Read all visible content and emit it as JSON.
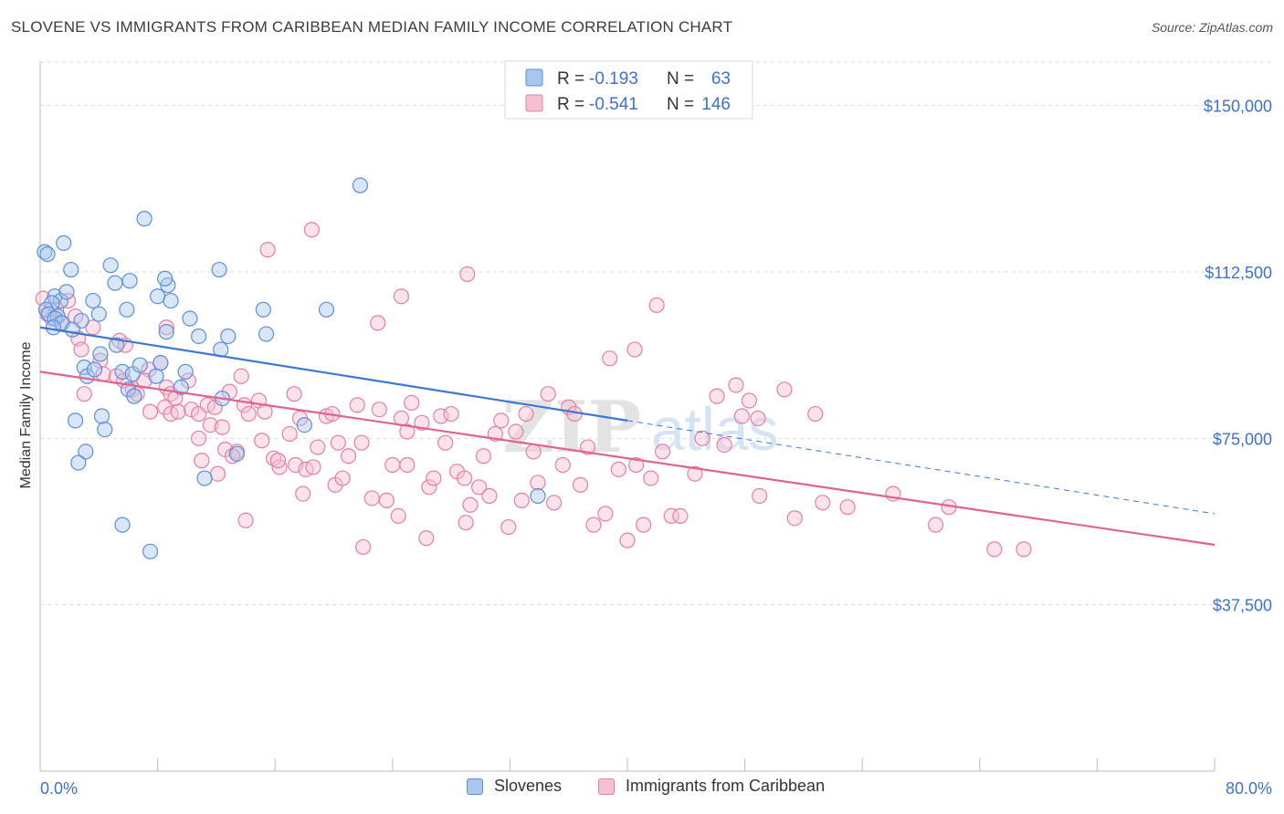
{
  "title": "SLOVENE VS IMMIGRANTS FROM CARIBBEAN MEDIAN FAMILY INCOME CORRELATION CHART",
  "source": "Source: ZipAtlas.com",
  "watermark": {
    "zip": "ZIP",
    "atlas": "atlas"
  },
  "legend_top": [
    {
      "r_label": "R =",
      "r_value": "-0.193",
      "n_label": "N =",
      "n_value": "63"
    },
    {
      "r_label": "R =",
      "r_value": "-0.541",
      "n_label": "N =",
      "n_value": "146"
    }
  ],
  "legend_bottom": [
    "Slovenes",
    "Immigrants from Caribbean"
  ],
  "colors": {
    "slovenes_fill": "#a9c7ee",
    "slovenes_stroke": "#5b8fd6",
    "slovenes_line": "#3a78d4",
    "caribbean_fill": "#f6bfd2",
    "caribbean_stroke": "#e57fa2",
    "caribbean_line": "#e0638f",
    "axis_label": "#3d72c9",
    "grid": "#dcdcdc"
  },
  "chart_data": {
    "type": "scatter",
    "title": "SLOVENE VS IMMIGRANTS FROM CARIBBEAN MEDIAN FAMILY INCOME CORRELATION CHART",
    "xlabel": "",
    "ylabel": "Median Family Income",
    "xlim": [
      0,
      80
    ],
    "ylim": [
      0,
      160000
    ],
    "x_tick_labels": [
      "0.0%",
      "80.0%"
    ],
    "y_ticks": [
      37500,
      75000,
      112500,
      150000
    ],
    "y_tick_labels": [
      "$37,500",
      "$75,000",
      "$112,500",
      "$150,000"
    ],
    "grid": true,
    "legend_placement": "top-center",
    "series": [
      {
        "name": "Slovenes",
        "R": -0.193,
        "N": 63,
        "trend": {
          "x0": 0,
          "y0": 100000,
          "x1": 40,
          "y1": 79000,
          "dashed_to_x": 80,
          "dashed_to_y": 58000
        },
        "points": [
          [
            0.3,
            117000
          ],
          [
            0.5,
            116500
          ],
          [
            1.6,
            119000
          ],
          [
            2.1,
            113000
          ],
          [
            1.0,
            107000
          ],
          [
            1.4,
            106000
          ],
          [
            0.8,
            105500
          ],
          [
            0.4,
            104000
          ],
          [
            0.6,
            103000
          ],
          [
            1.2,
            102500
          ],
          [
            2.8,
            101500
          ],
          [
            3.6,
            106000
          ],
          [
            4.8,
            114000
          ],
          [
            5.1,
            110000
          ],
          [
            6.1,
            110500
          ],
          [
            5.9,
            104000
          ],
          [
            4.0,
            103000
          ],
          [
            7.1,
            124500
          ],
          [
            8.0,
            107000
          ],
          [
            8.7,
            109500
          ],
          [
            8.6,
            99000
          ],
          [
            8.9,
            106000
          ],
          [
            8.5,
            111000
          ],
          [
            10.2,
            102000
          ],
          [
            10.8,
            98000
          ],
          [
            12.2,
            113000
          ],
          [
            12.8,
            98000
          ],
          [
            12.3,
            95000
          ],
          [
            15.2,
            104000
          ],
          [
            15.4,
            98500
          ],
          [
            19.5,
            104000
          ],
          [
            21.8,
            132000
          ],
          [
            1.0,
            102000
          ],
          [
            1.5,
            101000
          ],
          [
            2.2,
            99500
          ],
          [
            3.0,
            91000
          ],
          [
            3.2,
            89000
          ],
          [
            4.1,
            94000
          ],
          [
            5.2,
            96000
          ],
          [
            5.6,
            90000
          ],
          [
            6.3,
            89500
          ],
          [
            6.8,
            91500
          ],
          [
            7.9,
            89000
          ],
          [
            8.2,
            92000
          ],
          [
            9.6,
            86500
          ],
          [
            6.0,
            86000
          ],
          [
            6.4,
            84500
          ],
          [
            2.4,
            79000
          ],
          [
            4.2,
            80000
          ],
          [
            4.4,
            77000
          ],
          [
            3.1,
            72000
          ],
          [
            2.6,
            69500
          ],
          [
            11.2,
            66000
          ],
          [
            13.4,
            71500
          ],
          [
            5.6,
            55500
          ],
          [
            7.5,
            49500
          ],
          [
            18.0,
            78000
          ],
          [
            33.9,
            62000
          ],
          [
            9.9,
            90000
          ],
          [
            3.7,
            90500
          ],
          [
            12.4,
            84000
          ],
          [
            0.9,
            100000
          ],
          [
            1.8,
            108000
          ]
        ]
      },
      {
        "name": "Immigrants from Caribbean",
        "R": -0.541,
        "N": 146,
        "trend": {
          "x0": 0,
          "y0": 90000,
          "x1": 80,
          "y1": 51000
        },
        "points": [
          [
            0.2,
            106500
          ],
          [
            0.5,
            103000
          ],
          [
            0.8,
            102000
          ],
          [
            1.1,
            104000
          ],
          [
            1.4,
            101000
          ],
          [
            1.9,
            106000
          ],
          [
            2.4,
            102500
          ],
          [
            3.6,
            100000
          ],
          [
            2.6,
            97500
          ],
          [
            2.8,
            95000
          ],
          [
            4.1,
            92500
          ],
          [
            4.3,
            89500
          ],
          [
            5.2,
            89000
          ],
          [
            5.7,
            88000
          ],
          [
            5.4,
            97000
          ],
          [
            5.8,
            96000
          ],
          [
            3.0,
            85000
          ],
          [
            6.3,
            86000
          ],
          [
            6.6,
            85000
          ],
          [
            7.4,
            90500
          ],
          [
            7.1,
            88000
          ],
          [
            8.2,
            92000
          ],
          [
            8.6,
            86500
          ],
          [
            8.9,
            85000
          ],
          [
            9.2,
            84000
          ],
          [
            8.5,
            82000
          ],
          [
            8.9,
            80500
          ],
          [
            9.4,
            81000
          ],
          [
            7.5,
            81000
          ],
          [
            8.6,
            100000
          ],
          [
            10.1,
            88000
          ],
          [
            10.3,
            81500
          ],
          [
            10.8,
            80500
          ],
          [
            11.4,
            82500
          ],
          [
            11.9,
            82000
          ],
          [
            11.6,
            78000
          ],
          [
            12.4,
            77500
          ],
          [
            12.9,
            85500
          ],
          [
            13.7,
            89000
          ],
          [
            13.9,
            82500
          ],
          [
            14.2,
            80500
          ],
          [
            14.9,
            83500
          ],
          [
            15.3,
            81000
          ],
          [
            11.0,
            70000
          ],
          [
            10.8,
            75000
          ],
          [
            12.1,
            67000
          ],
          [
            13.4,
            72000
          ],
          [
            15.1,
            74500
          ],
          [
            15.9,
            70500
          ],
          [
            16.3,
            68500
          ],
          [
            17.0,
            76000
          ],
          [
            17.4,
            69000
          ],
          [
            17.3,
            85000
          ],
          [
            17.7,
            79500
          ],
          [
            18.1,
            68000
          ],
          [
            18.6,
            68500
          ],
          [
            18.9,
            73000
          ],
          [
            19.5,
            80000
          ],
          [
            19.9,
            80500
          ],
          [
            20.1,
            64500
          ],
          [
            20.6,
            66000
          ],
          [
            21.0,
            71000
          ],
          [
            21.6,
            82500
          ],
          [
            21.9,
            74000
          ],
          [
            22.6,
            61500
          ],
          [
            23.1,
            81500
          ],
          [
            23.6,
            61000
          ],
          [
            24.0,
            69000
          ],
          [
            24.6,
            79500
          ],
          [
            25.0,
            69000
          ],
          [
            25.0,
            76500
          ],
          [
            25.3,
            83000
          ],
          [
            26.0,
            78500
          ],
          [
            26.5,
            64000
          ],
          [
            26.8,
            66000
          ],
          [
            27.3,
            80000
          ],
          [
            27.6,
            74000
          ],
          [
            28.0,
            80500
          ],
          [
            28.4,
            67500
          ],
          [
            28.9,
            66000
          ],
          [
            29.3,
            60000
          ],
          [
            29.9,
            64000
          ],
          [
            30.2,
            71000
          ],
          [
            30.6,
            62000
          ],
          [
            31.0,
            76000
          ],
          [
            31.4,
            79000
          ],
          [
            31.9,
            55000
          ],
          [
            32.4,
            76500
          ],
          [
            32.8,
            61000
          ],
          [
            33.1,
            80500
          ],
          [
            33.6,
            72000
          ],
          [
            33.9,
            65000
          ],
          [
            34.6,
            85000
          ],
          [
            35.0,
            60500
          ],
          [
            35.6,
            69000
          ],
          [
            36.0,
            82000
          ],
          [
            36.4,
            80500
          ],
          [
            36.8,
            64500
          ],
          [
            37.3,
            73000
          ],
          [
            37.7,
            55500
          ],
          [
            38.5,
            58000
          ],
          [
            39.4,
            68000
          ],
          [
            40.0,
            52000
          ],
          [
            40.6,
            69000
          ],
          [
            41.1,
            55500
          ],
          [
            41.6,
            66000
          ],
          [
            42.4,
            72000
          ],
          [
            43.0,
            57500
          ],
          [
            43.6,
            57500
          ],
          [
            44.6,
            67000
          ],
          [
            45.1,
            75000
          ],
          [
            46.1,
            84500
          ],
          [
            46.6,
            73500
          ],
          [
            47.4,
            87000
          ],
          [
            47.8,
            80000
          ],
          [
            48.3,
            83500
          ],
          [
            48.9,
            79500
          ],
          [
            49.0,
            62000
          ],
          [
            50.7,
            86000
          ],
          [
            51.4,
            57000
          ],
          [
            52.8,
            80500
          ],
          [
            53.3,
            60500
          ],
          [
            55.0,
            59500
          ],
          [
            58.1,
            62500
          ],
          [
            61.0,
            55500
          ],
          [
            61.9,
            59500
          ],
          [
            65.0,
            50000
          ],
          [
            67.0,
            50000
          ],
          [
            29.1,
            112000
          ],
          [
            18.5,
            122000
          ],
          [
            15.5,
            117500
          ],
          [
            24.6,
            107000
          ],
          [
            23.0,
            101000
          ],
          [
            40.5,
            95000
          ],
          [
            38.8,
            93000
          ],
          [
            42.0,
            105000
          ],
          [
            29.0,
            56000
          ],
          [
            22.0,
            50500
          ],
          [
            17.9,
            62500
          ],
          [
            16.2,
            70000
          ],
          [
            14.0,
            56500
          ],
          [
            12.6,
            72500
          ],
          [
            13.1,
            71000
          ],
          [
            20.3,
            74000
          ],
          [
            24.4,
            57500
          ],
          [
            26.3,
            52500
          ]
        ]
      }
    ]
  }
}
